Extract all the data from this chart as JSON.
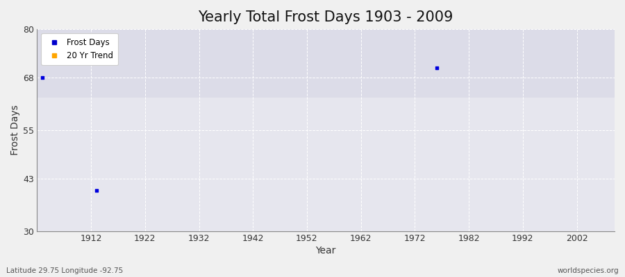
{
  "title": "Yearly Total Frost Days 1903 - 2009",
  "xlabel": "Year",
  "ylabel": "Frost Days",
  "xlim": [
    1902,
    2009
  ],
  "ylim": [
    30,
    80
  ],
  "yticks": [
    30,
    43,
    55,
    68,
    80
  ],
  "xticks": [
    1912,
    1922,
    1932,
    1942,
    1952,
    1962,
    1972,
    1982,
    1992,
    2002
  ],
  "data_points": [
    {
      "year": 1903,
      "value": 68
    },
    {
      "year": 1913,
      "value": 40.0
    },
    {
      "year": 1976,
      "value": 70.5
    }
  ],
  "dot_color": "#0000dd",
  "dot_size": 10,
  "fig_background_color": "#f0f0f0",
  "plot_bg_upper": "#dcdce8",
  "plot_bg_lower": "#e6e6ee",
  "grid_color": "#ffffff",
  "title_fontsize": 15,
  "axis_fontsize": 10,
  "tick_fontsize": 9,
  "legend_frost_color": "#0000cc",
  "legend_trend_color": "#ffa500",
  "footer_left": "Latitude 29.75 Longitude -92.75",
  "footer_right": "worldspecies.org",
  "upper_band_threshold": 63
}
